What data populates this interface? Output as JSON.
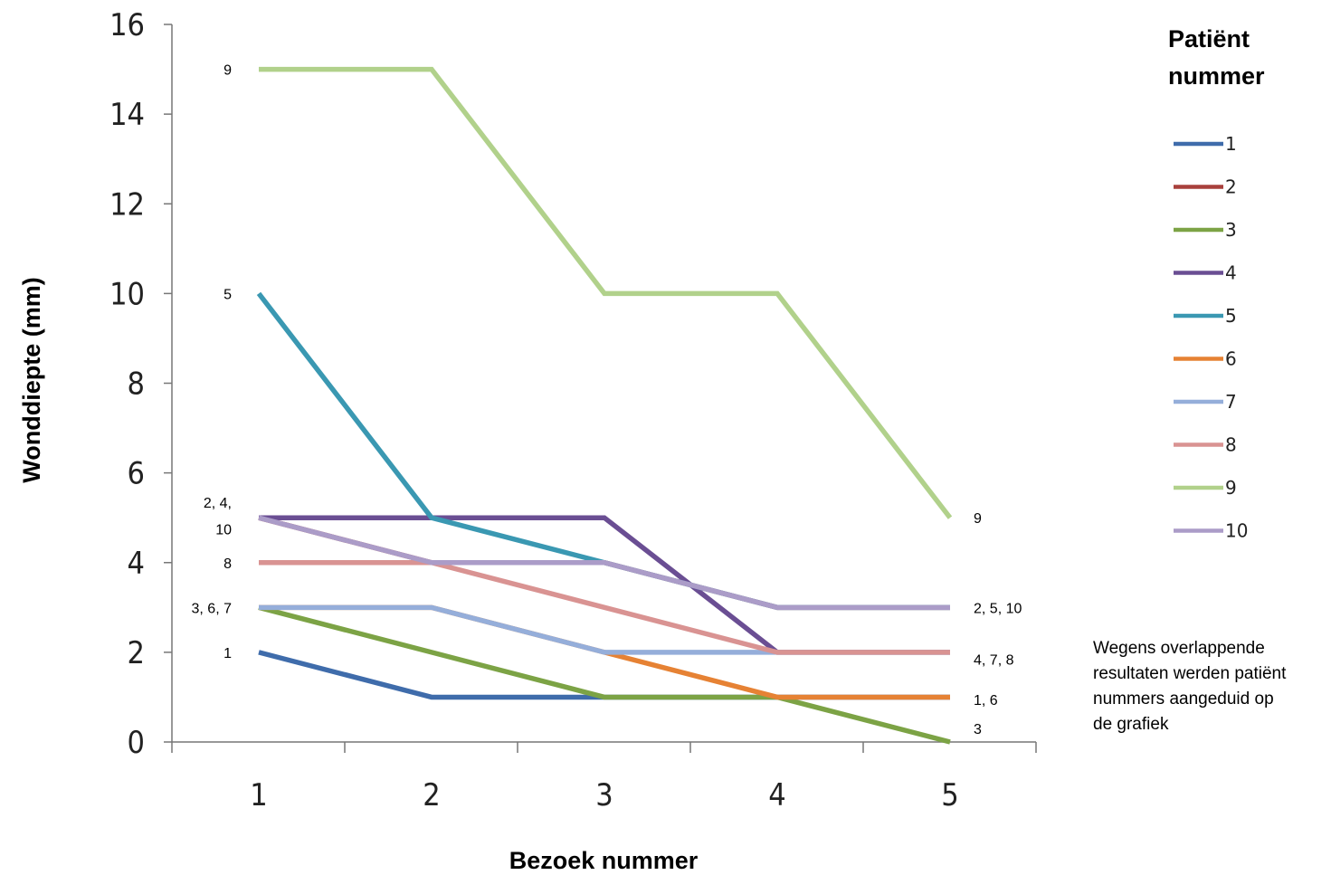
{
  "chart_data": {
    "type": "line",
    "ylabel": "Wonddiepte (mm)",
    "xlabel": "Bezoek nummer",
    "x": [
      1,
      2,
      3,
      4,
      5
    ],
    "ylim": [
      0,
      16
    ],
    "yticks": [
      0,
      2,
      4,
      6,
      8,
      10,
      12,
      14,
      16
    ],
    "legend_title": "Patiënt nummer",
    "legend_position": "right",
    "grid": false,
    "series": [
      {
        "name": "1",
        "color": "#3F6CAB",
        "values": [
          2,
          1,
          1,
          1,
          1
        ]
      },
      {
        "name": "2",
        "color": "#A8403C",
        "values": [
          5,
          4,
          4,
          3,
          3
        ]
      },
      {
        "name": "3",
        "color": "#7CA345",
        "values": [
          3,
          2,
          1,
          1,
          0
        ]
      },
      {
        "name": "4",
        "color": "#6A4E93",
        "values": [
          5,
          5,
          5,
          2,
          2
        ]
      },
      {
        "name": "5",
        "color": "#3A98B2",
        "values": [
          10,
          5,
          4,
          3,
          3
        ]
      },
      {
        "name": "6",
        "color": "#E68234",
        "values": [
          3,
          3,
          2,
          1,
          1
        ]
      },
      {
        "name": "7",
        "color": "#95AEDA",
        "values": [
          3,
          3,
          2,
          2,
          2
        ]
      },
      {
        "name": "8",
        "color": "#D99392",
        "values": [
          4,
          4,
          3,
          2,
          2
        ]
      },
      {
        "name": "9",
        "color": "#B1D18B",
        "values": [
          15,
          15,
          10,
          10,
          5
        ]
      },
      {
        "name": "10",
        "color": "#AB9CC8",
        "values": [
          5,
          4,
          4,
          3,
          3
        ]
      }
    ],
    "annotations_start": [
      {
        "text": "9",
        "y": 15
      },
      {
        "text": "5",
        "y": 10
      },
      {
        "text": "2, 4,",
        "y": 5.35
      },
      {
        "text": "10",
        "y": 4.75
      },
      {
        "text": "8",
        "y": 4
      },
      {
        "text": "3, 6, 7",
        "y": 3
      },
      {
        "text": "1",
        "y": 2
      }
    ],
    "annotations_end": [
      {
        "text": "9",
        "y": 5
      },
      {
        "text": "2, 5, 10",
        "y": 3
      },
      {
        "text": "4, 7, 8",
        "y": 1.85
      },
      {
        "text": "1, 6",
        "y": 0.95
      },
      {
        "text": "3",
        "y": 0.3
      }
    ]
  },
  "note": "Wegens overlappende\n resultaten werden patiënt\nnummers aangeduid op\nde grafiek"
}
